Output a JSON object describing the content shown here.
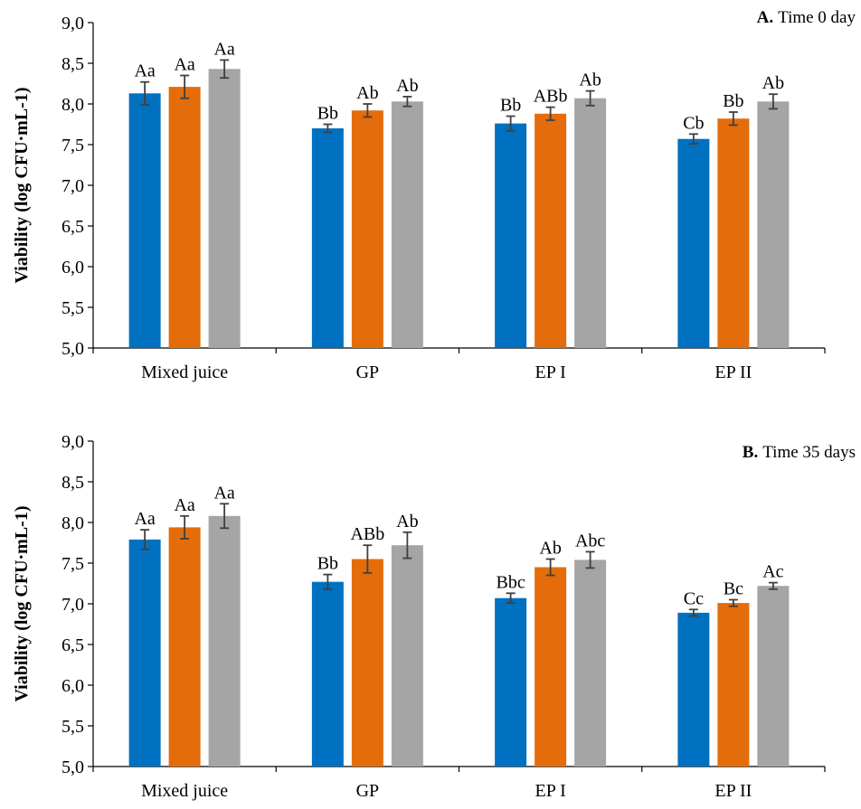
{
  "chart_data": [
    {
      "type": "bar",
      "panel_letter": "A.",
      "panel_title": "Time 0 day",
      "ylabel": "Viability (log CFU·mL-1)",
      "xlabel": "",
      "ylim": [
        5.0,
        9.0
      ],
      "yticks": [
        "5,0",
        "5,5",
        "6,0",
        "6,5",
        "7,0",
        "7,5",
        "8,0",
        "8,5",
        "9,0"
      ],
      "categories": [
        "Mixed juice",
        "GP",
        "EP I",
        "EP II"
      ],
      "grid": false,
      "legend": "none",
      "series": [
        {
          "color": "#0070C0",
          "values": [
            8.13,
            7.7,
            7.76,
            7.57
          ],
          "errors": [
            0.14,
            0.05,
            0.09,
            0.06
          ],
          "labels": [
            "Aa",
            "Bb",
            "Bb",
            "Cb"
          ]
        },
        {
          "color": "#E46C0A",
          "values": [
            8.21,
            7.92,
            7.88,
            7.82
          ],
          "errors": [
            0.14,
            0.08,
            0.08,
            0.08
          ],
          "labels": [
            "Aa",
            "Ab",
            "ABb",
            "Bb"
          ]
        },
        {
          "color": "#A5A5A5",
          "values": [
            8.43,
            8.03,
            8.07,
            8.03
          ],
          "errors": [
            0.11,
            0.06,
            0.09,
            0.09
          ],
          "labels": [
            "Aa",
            "Ab",
            "Ab",
            "Ab"
          ]
        }
      ]
    },
    {
      "type": "bar",
      "panel_letter": "B.",
      "panel_title": "Time 35 days",
      "ylabel": "Viability (log CFU·mL-1)",
      "xlabel": "",
      "ylim": [
        5.0,
        9.0
      ],
      "yticks": [
        "5,0",
        "5,5",
        "6,0",
        "6,5",
        "7,0",
        "7,5",
        "8,0",
        "8,5",
        "9,0"
      ],
      "categories": [
        "Mixed juice",
        "GP",
        "EP I",
        "EP II"
      ],
      "grid": false,
      "legend": "none",
      "series": [
        {
          "color": "#0070C0",
          "values": [
            7.79,
            7.27,
            7.07,
            6.89
          ],
          "errors": [
            0.12,
            0.09,
            0.06,
            0.04
          ],
          "labels": [
            "Aa",
            "Bb",
            "Bbc",
            "Cc"
          ]
        },
        {
          "color": "#E46C0A",
          "values": [
            7.94,
            7.55,
            7.45,
            7.01
          ],
          "errors": [
            0.14,
            0.17,
            0.1,
            0.04
          ],
          "labels": [
            "Aa",
            "ABb",
            "Ab",
            "Bc"
          ]
        },
        {
          "color": "#A5A5A5",
          "values": [
            8.08,
            7.72,
            7.54,
            7.22
          ],
          "errors": [
            0.15,
            0.16,
            0.1,
            0.04
          ],
          "labels": [
            "Aa",
            "Ab",
            "Abc",
            "Ac"
          ]
        }
      ]
    }
  ]
}
